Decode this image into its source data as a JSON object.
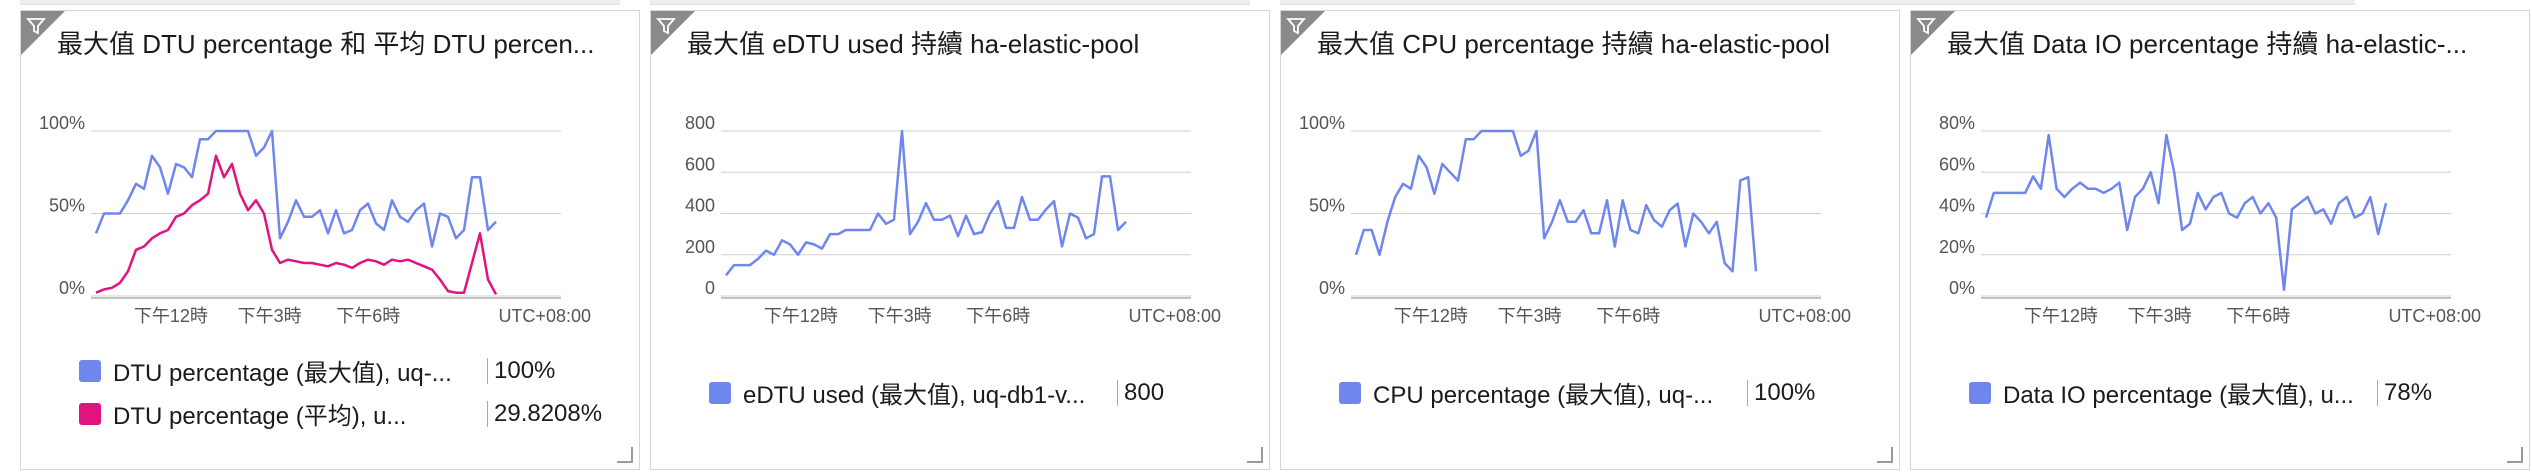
{
  "colors": {
    "series_blue": "#6f86ee",
    "series_pink": "#e0137f",
    "grid": "#cfcfcf",
    "axis": "#8a8a8a"
  },
  "tiles": [
    {
      "title": "最大值 DTU percentage 和 平均 DTU percen...",
      "filter_icon": "filter-icon",
      "legend": [
        {
          "label": "DTU percentage (最大值), uq-...",
          "value": "100%",
          "color": "#6f86ee"
        },
        {
          "label": "DTU percentage (平均), u...",
          "value": "29.8208%",
          "color": "#e0137f"
        }
      ]
    },
    {
      "title": "最大值 eDTU used 持續 ha-elastic-pool",
      "filter_icon": "filter-icon",
      "legend": [
        {
          "label": "eDTU used (最大值), uq-db1-v...",
          "value": "800",
          "color": "#6f86ee"
        }
      ]
    },
    {
      "title": "最大值 CPU percentage 持續 ha-elastic-pool",
      "filter_icon": "filter-icon",
      "legend": [
        {
          "label": "CPU percentage (最大值), uq-...",
          "value": "100%",
          "color": "#6f86ee"
        }
      ]
    },
    {
      "title": "最大值 Data IO percentage 持續 ha-elastic-...",
      "filter_icon": "filter-icon",
      "legend": [
        {
          "label": "Data IO percentage (最大值), u...",
          "value": "78%",
          "color": "#6f86ee"
        }
      ]
    }
  ],
  "chart_data": [
    {
      "type": "line",
      "title": "最大值 DTU percentage 和 平均 DTU percen...",
      "y_ticks": [
        "100%",
        "50%",
        "0%"
      ],
      "y_tick_values": [
        100,
        50,
        0
      ],
      "ylim": [
        0,
        100
      ],
      "x_ticks": [
        "下午12時",
        "下午3時",
        "下午6時",
        "UTC+08:00"
      ],
      "grid": true,
      "series": [
        {
          "name": "DTU percentage (最大值), uq-...",
          "color": "#6f86ee",
          "values": [
            38,
            50,
            50,
            50,
            58,
            68,
            65,
            85,
            78,
            62,
            80,
            78,
            72,
            95,
            95,
            100,
            100,
            100,
            100,
            100,
            85,
            90,
            100,
            35,
            45,
            58,
            48,
            48,
            52,
            38,
            52,
            38,
            40,
            52,
            56,
            44,
            40,
            58,
            48,
            45,
            52,
            56,
            30,
            50,
            48,
            35,
            40,
            72,
            72,
            40,
            45
          ]
        },
        {
          "name": "DTU percentage (平均), u...",
          "color": "#e0137f",
          "values": [
            2,
            4,
            5,
            8,
            15,
            28,
            30,
            35,
            38,
            40,
            48,
            50,
            55,
            58,
            62,
            85,
            72,
            80,
            62,
            52,
            58,
            50,
            28,
            20,
            22,
            21,
            20,
            20,
            19,
            18,
            20,
            19,
            17,
            20,
            22,
            21,
            19,
            22,
            21,
            22,
            20,
            18,
            16,
            10,
            3,
            2,
            2,
            20,
            38,
            10,
            1
          ]
        }
      ]
    },
    {
      "type": "line",
      "title": "最大值 eDTU used 持續 ha-elastic-pool",
      "y_ticks": [
        "800",
        "600",
        "400",
        "200",
        "0"
      ],
      "y_tick_values": [
        800,
        600,
        400,
        200,
        0
      ],
      "ylim": [
        0,
        800
      ],
      "x_ticks": [
        "下午12時",
        "下午3時",
        "下午6時",
        "UTC+08:00"
      ],
      "grid": true,
      "series": [
        {
          "name": "eDTU used (最大值), uq-db1-v...",
          "color": "#6f86ee",
          "values": [
            100,
            150,
            150,
            150,
            180,
            220,
            200,
            270,
            250,
            200,
            260,
            250,
            230,
            300,
            300,
            320,
            320,
            320,
            320,
            400,
            350,
            370,
            800,
            300,
            360,
            450,
            370,
            370,
            390,
            290,
            390,
            300,
            310,
            400,
            460,
            330,
            330,
            480,
            370,
            370,
            420,
            460,
            240,
            400,
            380,
            280,
            300,
            580,
            580,
            320,
            360
          ]
        }
      ]
    },
    {
      "type": "line",
      "title": "最大值 CPU percentage 持續 ha-elastic-pool",
      "y_ticks": [
        "100%",
        "50%",
        "0%"
      ],
      "y_tick_values": [
        100,
        50,
        0
      ],
      "ylim": [
        0,
        100
      ],
      "x_ticks": [
        "下午12時",
        "下午3時",
        "下午6時",
        "UTC+08:00"
      ],
      "grid": true,
      "series": [
        {
          "name": "CPU percentage (最大值), uq-...",
          "color": "#6f86ee",
          "values": [
            25,
            40,
            40,
            25,
            45,
            60,
            68,
            65,
            85,
            78,
            62,
            80,
            75,
            70,
            95,
            95,
            100,
            100,
            100,
            100,
            100,
            85,
            88,
            100,
            35,
            45,
            58,
            45,
            45,
            52,
            38,
            38,
            58,
            30,
            58,
            40,
            38,
            55,
            46,
            42,
            52,
            56,
            30,
            50,
            45,
            38,
            45,
            20,
            15,
            70,
            72,
            15
          ]
        }
      ]
    },
    {
      "type": "line",
      "title": "最大值 Data IO percentage 持續 ha-elastic-...",
      "y_ticks": [
        "80%",
        "60%",
        "40%",
        "20%",
        "0%"
      ],
      "y_tick_values": [
        80,
        60,
        40,
        20,
        0
      ],
      "ylim": [
        0,
        80
      ],
      "x_ticks": [
        "下午12時",
        "下午3時",
        "下午6時",
        "UTC+08:00"
      ],
      "grid": true,
      "series": [
        {
          "name": "Data IO percentage (最大值), u...",
          "color": "#6f86ee",
          "values": [
            38,
            50,
            50,
            50,
            50,
            50,
            58,
            52,
            78,
            52,
            48,
            52,
            55,
            52,
            52,
            50,
            52,
            55,
            32,
            48,
            52,
            60,
            45,
            78,
            60,
            32,
            35,
            50,
            42,
            48,
            50,
            40,
            38,
            45,
            48,
            40,
            45,
            38,
            3,
            42,
            45,
            48,
            40,
            42,
            35,
            45,
            48,
            38,
            40,
            48,
            30,
            45
          ]
        }
      ]
    }
  ]
}
